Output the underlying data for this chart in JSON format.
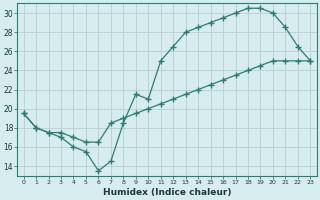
{
  "xlabel": "Humidex (Indice chaleur)",
  "bg_color": "#d6ecee",
  "line_color": "#2e7d6e",
  "grid_color": "#c8dfe0",
  "xlim": [
    -0.5,
    23.5
  ],
  "ylim": [
    13.0,
    31.0
  ],
  "xticks": [
    0,
    1,
    2,
    3,
    4,
    5,
    6,
    7,
    8,
    9,
    10,
    11,
    12,
    13,
    14,
    15,
    16,
    17,
    18,
    19,
    20,
    21,
    22,
    23
  ],
  "yticks": [
    14,
    16,
    18,
    20,
    22,
    24,
    26,
    28,
    30
  ],
  "curve1_x": [
    0,
    1,
    2,
    3,
    4,
    5,
    6,
    7,
    8,
    9,
    10,
    11,
    12,
    13,
    14,
    15,
    16,
    17,
    18,
    19,
    20,
    21,
    22,
    23
  ],
  "curve1_y": [
    19.5,
    18.0,
    17.5,
    17.0,
    16.0,
    15.5,
    13.5,
    14.5,
    18.5,
    21.5,
    21.0,
    25.0,
    26.5,
    28.0,
    28.5,
    29.0,
    29.5,
    30.0,
    30.5,
    30.5,
    30.0,
    28.5,
    26.5,
    25.0
  ],
  "curve2_x": [
    0,
    1,
    2,
    3,
    4,
    5,
    6,
    7,
    8,
    9,
    10,
    11,
    12,
    13,
    14,
    15,
    16,
    17,
    18,
    19,
    20,
    21,
    22,
    23
  ],
  "curve2_y": [
    19.5,
    18.0,
    17.5,
    17.5,
    17.0,
    16.5,
    16.5,
    18.5,
    19.0,
    19.5,
    20.0,
    20.5,
    21.0,
    21.5,
    22.0,
    22.5,
    23.0,
    23.5,
    24.0,
    24.5,
    25.0,
    25.0,
    25.0,
    25.0
  ]
}
